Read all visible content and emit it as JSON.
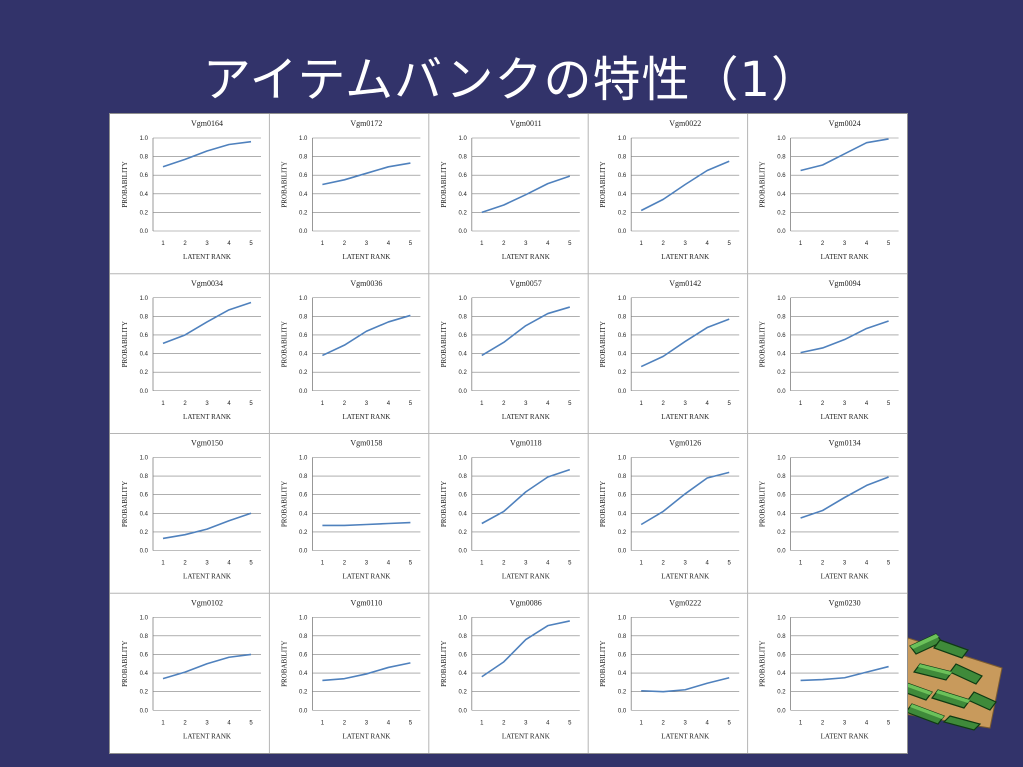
{
  "slide": {
    "title": "アイテムバンクの特性（1）",
    "colors": {
      "background": "#32336a",
      "title": "#ffffff",
      "line": "#4f81bd",
      "grid": "#7f7f7f"
    }
  },
  "chart_data": [
    {
      "type": "line",
      "title": "Vgm0164",
      "xlabel": "LATENT RANK",
      "ylabel": "PROBABILITY",
      "x": [
        1,
        2,
        3,
        4,
        5
      ],
      "ylim": [
        0,
        1
      ],
      "yticks": [
        "0.0",
        "0.2",
        "0.4",
        "0.6",
        "0.8",
        "1.0"
      ],
      "grid": true,
      "values": [
        0.69,
        0.77,
        0.86,
        0.93,
        0.96
      ]
    },
    {
      "type": "line",
      "title": "Vgm0172",
      "xlabel": "LATENT RANK",
      "ylabel": "PROBABILITY",
      "x": [
        1,
        2,
        3,
        4,
        5
      ],
      "ylim": [
        0,
        1
      ],
      "yticks": [
        "0.0",
        "0.2",
        "0.4",
        "0.6",
        "0.8",
        "1.0"
      ],
      "grid": true,
      "values": [
        0.5,
        0.55,
        0.62,
        0.69,
        0.73
      ]
    },
    {
      "type": "line",
      "title": "Vgm0011",
      "xlabel": "LATENT RANK",
      "ylabel": "PROBABILITY",
      "x": [
        1,
        2,
        3,
        4,
        5
      ],
      "ylim": [
        0,
        1
      ],
      "yticks": [
        "0.0",
        "0.2",
        "0.4",
        "0.6",
        "0.8",
        "1.0"
      ],
      "grid": true,
      "values": [
        0.2,
        0.28,
        0.39,
        0.51,
        0.59
      ]
    },
    {
      "type": "line",
      "title": "Vgm0022",
      "xlabel": "LATENT RANK",
      "ylabel": "PROBABILITY",
      "x": [
        1,
        2,
        3,
        4,
        5
      ],
      "ylim": [
        0,
        1
      ],
      "yticks": [
        "0.0",
        "0.2",
        "0.4",
        "0.6",
        "0.8",
        "1.0"
      ],
      "grid": true,
      "values": [
        0.22,
        0.34,
        0.5,
        0.65,
        0.75
      ]
    },
    {
      "type": "line",
      "title": "Vgm0024",
      "xlabel": "LATENT RANK",
      "ylabel": "PROBABILITY",
      "x": [
        1,
        2,
        3,
        4,
        5
      ],
      "ylim": [
        0,
        1
      ],
      "yticks": [
        "0.0",
        "0.2",
        "0.4",
        "0.6",
        "0.8",
        "1.0"
      ],
      "grid": true,
      "values": [
        0.65,
        0.71,
        0.83,
        0.95,
        0.99
      ]
    },
    {
      "type": "line",
      "title": "Vgm0034",
      "xlabel": "LATENT RANK",
      "ylabel": "PROBABILITY",
      "x": [
        1,
        2,
        3,
        4,
        5
      ],
      "ylim": [
        0,
        1
      ],
      "yticks": [
        "0.0",
        "0.2",
        "0.4",
        "0.6",
        "0.8",
        "1.0"
      ],
      "grid": true,
      "values": [
        0.51,
        0.6,
        0.74,
        0.87,
        0.95
      ]
    },
    {
      "type": "line",
      "title": "Vgm0036",
      "xlabel": "LATENT RANK",
      "ylabel": "PROBABILITY",
      "x": [
        1,
        2,
        3,
        4,
        5
      ],
      "ylim": [
        0,
        1
      ],
      "yticks": [
        "0.0",
        "0.2",
        "0.4",
        "0.6",
        "0.8",
        "1.0"
      ],
      "grid": true,
      "values": [
        0.38,
        0.49,
        0.64,
        0.74,
        0.81
      ]
    },
    {
      "type": "line",
      "title": "Vgm0057",
      "xlabel": "LATENT RANK",
      "ylabel": "PROBABILITY",
      "x": [
        1,
        2,
        3,
        4,
        5
      ],
      "ylim": [
        0,
        1
      ],
      "yticks": [
        "0.0",
        "0.2",
        "0.4",
        "0.6",
        "0.8",
        "1.0"
      ],
      "grid": true,
      "values": [
        0.38,
        0.52,
        0.7,
        0.83,
        0.9
      ]
    },
    {
      "type": "line",
      "title": "Vgm0142",
      "xlabel": "LATENT RANK",
      "ylabel": "PROBABILITY",
      "x": [
        1,
        2,
        3,
        4,
        5
      ],
      "ylim": [
        0,
        1
      ],
      "yticks": [
        "0.0",
        "0.2",
        "0.4",
        "0.6",
        "0.8",
        "1.0"
      ],
      "grid": true,
      "values": [
        0.26,
        0.37,
        0.53,
        0.68,
        0.77
      ]
    },
    {
      "type": "line",
      "title": "Vgm0094",
      "xlabel": "LATENT RANK",
      "ylabel": "PROBABILITY",
      "x": [
        1,
        2,
        3,
        4,
        5
      ],
      "ylim": [
        0,
        1
      ],
      "yticks": [
        "0.0",
        "0.2",
        "0.4",
        "0.6",
        "0.8",
        "1.0"
      ],
      "grid": true,
      "values": [
        0.41,
        0.46,
        0.55,
        0.67,
        0.75
      ]
    },
    {
      "type": "line",
      "title": "Vgm0150",
      "xlabel": "LATENT RANK",
      "ylabel": "PROBABILITY",
      "x": [
        1,
        2,
        3,
        4,
        5
      ],
      "ylim": [
        0,
        1
      ],
      "yticks": [
        "0.0",
        "0.2",
        "0.4",
        "0.6",
        "0.8",
        "1.0"
      ],
      "grid": true,
      "values": [
        0.13,
        0.17,
        0.23,
        0.32,
        0.4
      ]
    },
    {
      "type": "line",
      "title": "Vgm0158",
      "xlabel": "LATENT RANK",
      "ylabel": "PROBABILITY",
      "x": [
        1,
        2,
        3,
        4,
        5
      ],
      "ylim": [
        0,
        1
      ],
      "yticks": [
        "0.0",
        "0.2",
        "0.4",
        "0.6",
        "0.8",
        "1.0"
      ],
      "grid": true,
      "values": [
        0.27,
        0.27,
        0.28,
        0.29,
        0.3
      ]
    },
    {
      "type": "line",
      "title": "Vgm0118",
      "xlabel": "LATENT RANK",
      "ylabel": "PROBABILITY",
      "x": [
        1,
        2,
        3,
        4,
        5
      ],
      "ylim": [
        0,
        1
      ],
      "yticks": [
        "0.0",
        "0.2",
        "0.4",
        "0.6",
        "0.8",
        "1.0"
      ],
      "grid": true,
      "values": [
        0.29,
        0.42,
        0.63,
        0.79,
        0.87
      ]
    },
    {
      "type": "line",
      "title": "Vgm0126",
      "xlabel": "LATENT RANK",
      "ylabel": "PROBABILITY",
      "x": [
        1,
        2,
        3,
        4,
        5
      ],
      "ylim": [
        0,
        1
      ],
      "yticks": [
        "0.0",
        "0.2",
        "0.4",
        "0.6",
        "0.8",
        "1.0"
      ],
      "grid": true,
      "values": [
        0.28,
        0.42,
        0.61,
        0.78,
        0.84
      ]
    },
    {
      "type": "line",
      "title": "Vgm0134",
      "xlabel": "LATENT RANK",
      "ylabel": "PROBABILITY",
      "x": [
        1,
        2,
        3,
        4,
        5
      ],
      "ylim": [
        0,
        1
      ],
      "yticks": [
        "0.0",
        "0.2",
        "0.4",
        "0.6",
        "0.8",
        "1.0"
      ],
      "grid": true,
      "values": [
        0.35,
        0.43,
        0.57,
        0.7,
        0.79
      ]
    },
    {
      "type": "line",
      "title": "Vgm0102",
      "xlabel": "LATENT RANK",
      "ylabel": "PROBABILITY",
      "x": [
        1,
        2,
        3,
        4,
        5
      ],
      "ylim": [
        0,
        1
      ],
      "yticks": [
        "0.0",
        "0.2",
        "0.4",
        "0.6",
        "0.8",
        "1.0"
      ],
      "grid": true,
      "values": [
        0.34,
        0.41,
        0.5,
        0.57,
        0.6
      ]
    },
    {
      "type": "line",
      "title": "Vgm0110",
      "xlabel": "LATENT RANK",
      "ylabel": "PROBABILITY",
      "x": [
        1,
        2,
        3,
        4,
        5
      ],
      "ylim": [
        0,
        1
      ],
      "yticks": [
        "0.0",
        "0.2",
        "0.4",
        "0.6",
        "0.8",
        "1.0"
      ],
      "grid": true,
      "values": [
        0.32,
        0.34,
        0.39,
        0.46,
        0.51
      ]
    },
    {
      "type": "line",
      "title": "Vgm0086",
      "xlabel": "LATENT RANK",
      "ylabel": "PROBABILITY",
      "x": [
        1,
        2,
        3,
        4,
        5
      ],
      "ylim": [
        0,
        1
      ],
      "yticks": [
        "0.0",
        "0.2",
        "0.4",
        "0.6",
        "0.8",
        "1.0"
      ],
      "grid": true,
      "values": [
        0.36,
        0.52,
        0.76,
        0.91,
        0.96
      ]
    },
    {
      "type": "line",
      "title": "Vgm0222",
      "xlabel": "LATENT RANK",
      "ylabel": "PROBABILITY",
      "x": [
        1,
        2,
        3,
        4,
        5
      ],
      "ylim": [
        0,
        1
      ],
      "yticks": [
        "0.0",
        "0.2",
        "0.4",
        "0.6",
        "0.8",
        "1.0"
      ],
      "grid": true,
      "values": [
        0.21,
        0.2,
        0.22,
        0.29,
        0.35
      ]
    },
    {
      "type": "line",
      "title": "Vgm0230",
      "xlabel": "LATENT RANK",
      "ylabel": "PROBABILITY",
      "x": [
        1,
        2,
        3,
        4,
        5
      ],
      "ylim": [
        0,
        1
      ],
      "yticks": [
        "0.0",
        "0.2",
        "0.4",
        "0.6",
        "0.8",
        "1.0"
      ],
      "grid": true,
      "values": [
        0.32,
        0.33,
        0.35,
        0.41,
        0.47
      ]
    }
  ]
}
